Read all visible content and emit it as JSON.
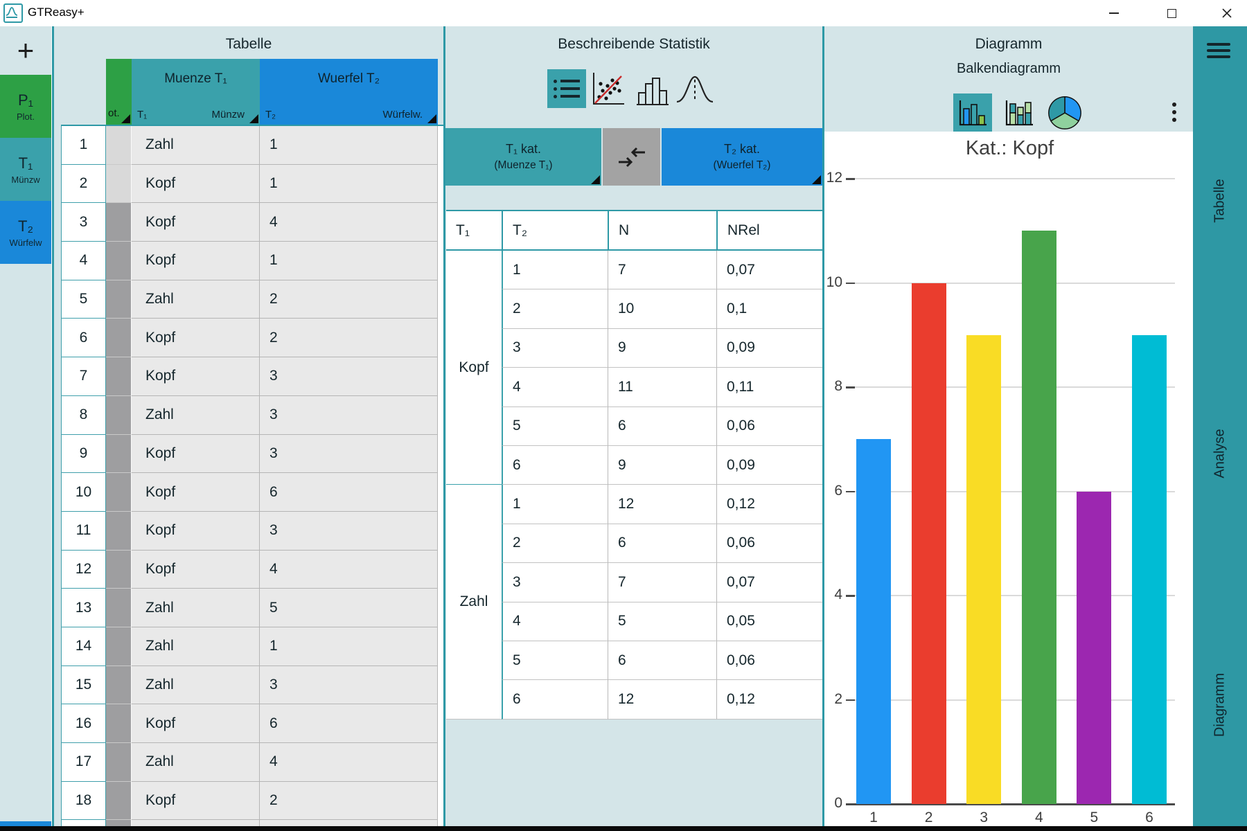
{
  "window": {
    "title": "GTReasy+",
    "controls": [
      "minimize",
      "restore",
      "close"
    ]
  },
  "left_sidebar": {
    "add": "+",
    "buttons": [
      {
        "id": "P1",
        "label": "P₁",
        "sub": "Plot.",
        "color": "#2da045"
      },
      {
        "id": "T1",
        "label": "T₁",
        "sub": "Münzw",
        "color": "#3aa1ab"
      },
      {
        "id": "T2",
        "label": "T₂",
        "sub": "Würfelw",
        "color": "#1a88d9"
      }
    ]
  },
  "table_panel": {
    "title": "Tabelle",
    "plot_col_header": "ot.",
    "columns": [
      {
        "title": "Muenze T₁",
        "left": "T₁",
        "right": "Münzw",
        "color": "#3aa1ab"
      },
      {
        "title": "Wuerfel T₂",
        "left": "T₂",
        "right": "Würfelw.",
        "color": "#1a88d9"
      }
    ],
    "rows": [
      {
        "n": 1,
        "t1": "Zahl",
        "t2": 1
      },
      {
        "n": 2,
        "t1": "Kopf",
        "t2": 1
      },
      {
        "n": 3,
        "t1": "Kopf",
        "t2": 4
      },
      {
        "n": 4,
        "t1": "Kopf",
        "t2": 1
      },
      {
        "n": 5,
        "t1": "Zahl",
        "t2": 2
      },
      {
        "n": 6,
        "t1": "Kopf",
        "t2": 2
      },
      {
        "n": 7,
        "t1": "Kopf",
        "t2": 3
      },
      {
        "n": 8,
        "t1": "Zahl",
        "t2": 3
      },
      {
        "n": 9,
        "t1": "Kopf",
        "t2": 3
      },
      {
        "n": 10,
        "t1": "Kopf",
        "t2": 6
      },
      {
        "n": 11,
        "t1": "Kopf",
        "t2": 3
      },
      {
        "n": 12,
        "t1": "Kopf",
        "t2": 4
      },
      {
        "n": 13,
        "t1": "Zahl",
        "t2": 5
      },
      {
        "n": 14,
        "t1": "Zahl",
        "t2": 1
      },
      {
        "n": 15,
        "t1": "Zahl",
        "t2": 3
      },
      {
        "n": 16,
        "t1": "Kopf",
        "t2": 6
      },
      {
        "n": 17,
        "t1": "Zahl",
        "t2": 4
      },
      {
        "n": 18,
        "t1": "Kopf",
        "t2": 2
      }
    ]
  },
  "stats_panel": {
    "title": "Beschreibende Statistik",
    "icons": [
      "list",
      "scatter-plot",
      "histogram",
      "normal-curve"
    ],
    "selected_icon": "list",
    "buttons": {
      "t1": {
        "line1": "T₁ kat.",
        "line2": "(Muenze T₁)"
      },
      "swap": {
        "icon": "swap-arrows"
      },
      "t2": {
        "line1": "T₂ kat.",
        "line2": "(Wuerfel T₂)"
      }
    },
    "table": {
      "headers": [
        "T₁",
        "T₂",
        "N",
        "NRel"
      ],
      "groups": [
        {
          "t1": "Kopf",
          "rows": [
            [
              1,
              7,
              "0,07"
            ],
            [
              2,
              10,
              "0,1"
            ],
            [
              3,
              9,
              "0,09"
            ],
            [
              4,
              11,
              "0,11"
            ],
            [
              5,
              6,
              "0,06"
            ],
            [
              6,
              9,
              "0,09"
            ]
          ]
        },
        {
          "t1": "Zahl",
          "rows": [
            [
              1,
              12,
              "0,12"
            ],
            [
              2,
              6,
              "0,06"
            ],
            [
              3,
              7,
              "0,07"
            ],
            [
              4,
              5,
              "0,05"
            ],
            [
              5,
              6,
              "0,06"
            ],
            [
              6,
              12,
              "0,12"
            ]
          ]
        }
      ]
    }
  },
  "diagram_panel": {
    "title": "Diagramm",
    "subtitle": "Balkendiagramm",
    "icons": [
      "bar-chart",
      "stacked-bar-chart",
      "pie-chart"
    ],
    "selected_icon": "bar-chart"
  },
  "right_sidebar": {
    "items": [
      "Tabelle",
      "Analyse",
      "Diagramm"
    ]
  },
  "chart_data": {
    "type": "bar",
    "title": "Kat.: Kopf",
    "categories": [
      "1",
      "2",
      "3",
      "4",
      "5",
      "6"
    ],
    "values": [
      7,
      10,
      9,
      11,
      6,
      9
    ],
    "bar_colors": [
      "#2196f3",
      "#ea3d2e",
      "#f9dc25",
      "#48a44b",
      "#9c27b0",
      "#00bcd4"
    ],
    "xlabel": "",
    "ylabel": "",
    "ylim": [
      0,
      12
    ],
    "yticks": [
      0,
      2,
      4,
      6,
      8,
      10,
      12
    ],
    "grid": true,
    "legend": false
  },
  "colors": {
    "accent_teal": "#2e99a6",
    "header_bg": "#d4e5e8",
    "green": "#2da045",
    "teal": "#3aa1ab",
    "blue": "#1a88d9"
  }
}
